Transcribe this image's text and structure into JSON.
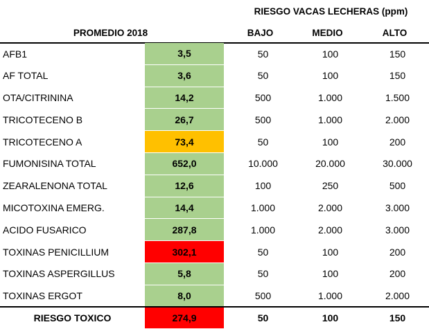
{
  "header": {
    "risk_title": "RIESGO VACAS LECHERAS (ppm)",
    "average_label": "PROMEDIO 2018",
    "col_low": "BAJO",
    "col_mid": "MEDIO",
    "col_high": "ALTO"
  },
  "colors": {
    "green": "#a9d08e",
    "orange": "#ffc000",
    "red": "#ff0000"
  },
  "rows": [
    {
      "name": "AFB1",
      "value": "3,5",
      "status": "green",
      "low": "50",
      "mid": "100",
      "high": "150"
    },
    {
      "name": "AF TOTAL",
      "value": "3,6",
      "status": "green",
      "low": "50",
      "mid": "100",
      "high": "150"
    },
    {
      "name": "OTA/CITRININA",
      "value": "14,2",
      "status": "green",
      "low": "500",
      "mid": "1.000",
      "high": "1.500"
    },
    {
      "name": "TRICOTECENO B",
      "value": "26,7",
      "status": "green",
      "low": "500",
      "mid": "1.000",
      "high": "2.000"
    },
    {
      "name": "TRICOTECENO A",
      "value": "73,4",
      "status": "orange",
      "low": "50",
      "mid": "100",
      "high": "200"
    },
    {
      "name": "FUMONISINA TOTAL",
      "value": "652,0",
      "status": "green",
      "low": "10.000",
      "mid": "20.000",
      "high": "30.000"
    },
    {
      "name": "ZEARALENONA TOTAL",
      "value": "12,6",
      "status": "green",
      "low": "100",
      "mid": "250",
      "high": "500"
    },
    {
      "name": "MICOTOXINA EMERG.",
      "value": "14,4",
      "status": "green",
      "low": "1.000",
      "mid": "2.000",
      "high": "3.000"
    },
    {
      "name": "ACIDO FUSARICO",
      "value": "287,8",
      "status": "green",
      "low": "1.000",
      "mid": "2.000",
      "high": "3.000"
    },
    {
      "name": "TOXINAS PENICILLIUM",
      "value": "302,1",
      "status": "red",
      "low": "50",
      "mid": "100",
      "high": "200"
    },
    {
      "name": "TOXINAS ASPERGILLUS",
      "value": "5,8",
      "status": "green",
      "low": "50",
      "mid": "100",
      "high": "200"
    },
    {
      "name": "TOXINAS ERGOT",
      "value": "8,0",
      "status": "green",
      "low": "500",
      "mid": "1.000",
      "high": "2.000"
    }
  ],
  "total": {
    "name": "RIESGO TOXICO",
    "value": "274,9",
    "status": "red",
    "low": "50",
    "mid": "100",
    "high": "150"
  }
}
